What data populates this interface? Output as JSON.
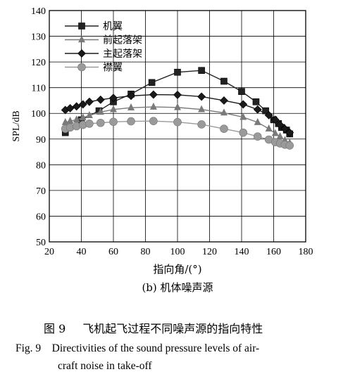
{
  "chart_data": {
    "type": "line",
    "xlabel": "指向角/(°)",
    "ylabel": "SPL/dB",
    "xlim": [
      20,
      180
    ],
    "ylim": [
      50,
      140
    ],
    "xticks": [
      20,
      40,
      60,
      80,
      100,
      120,
      140,
      160,
      180
    ],
    "yticks": [
      50,
      60,
      70,
      80,
      90,
      100,
      110,
      120,
      130,
      140
    ],
    "grid": true,
    "legend_position": "top-left",
    "series": [
      {
        "name": "机翼",
        "marker": "square",
        "color": "#222222",
        "x": [
          30,
          40,
          51,
          60,
          71,
          84,
          100,
          115,
          129,
          140,
          149,
          155,
          160,
          163,
          165,
          168,
          170
        ],
        "y": [
          92.5,
          97.5,
          101,
          104.5,
          107.5,
          112,
          116,
          116.7,
          112.5,
          108.5,
          104.5,
          101,
          97.5,
          96,
          94.5,
          93.5,
          92
        ]
      },
      {
        "name": "前起落架",
        "marker": "triangle",
        "color": "#7a7a7a",
        "x": [
          30,
          33,
          37,
          41,
          45,
          52,
          60,
          71,
          85,
          100,
          115,
          129,
          141,
          150,
          157,
          161,
          164,
          167,
          170
        ],
        "y": [
          96.5,
          97,
          97.5,
          98.3,
          99.2,
          100.5,
          101.5,
          102.2,
          102.5,
          102.3,
          101.5,
          100.2,
          98.5,
          96.5,
          94,
          92.2,
          91,
          89.5,
          88.5
        ]
      },
      {
        "name": "主起落架",
        "marker": "diamond",
        "color": "#1a1a1a",
        "x": [
          30,
          33,
          37,
          41,
          45,
          52,
          60,
          71,
          85,
          100,
          115,
          129,
          141,
          150,
          157,
          161,
          164,
          167,
          170
        ],
        "y": [
          101.3,
          102,
          102.7,
          103.5,
          104.5,
          105.3,
          106,
          106.8,
          107.3,
          107.2,
          106.5,
          105,
          103.5,
          101.5,
          99.3,
          97.5,
          95.5,
          94,
          92.5
        ]
      },
      {
        "name": "襟翼",
        "marker": "circle",
        "color": "#9a9a9a",
        "x": [
          30,
          33,
          37,
          41,
          45,
          52,
          60,
          71,
          85,
          100,
          115,
          129,
          141,
          150,
          157,
          161,
          164,
          167,
          170
        ],
        "y": [
          94,
          94.5,
          95,
          95.5,
          96,
          96.3,
          96.7,
          96.9,
          97,
          96.6,
          95.7,
          94,
          92.5,
          91,
          89.8,
          88.8,
          88.3,
          87.8,
          87.5
        ]
      }
    ]
  },
  "captions": {
    "subfigure": "(b) 机体噪声源",
    "figure_cn_label": "图 9",
    "figure_cn_text": "飞机起飞过程不同噪声源的指向特性",
    "figure_en_line1": "Fig. 9    Directivities of the sound pressure levels of air-",
    "figure_en_line2": "craft noise in take-off"
  }
}
